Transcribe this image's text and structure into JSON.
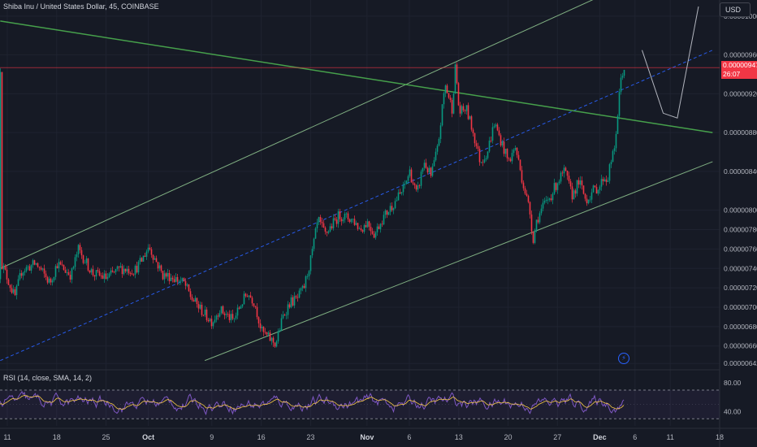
{
  "header": {
    "symbol_title": "Shiba Inu / United States Dollar, 45, COINBASE",
    "currency": "USD"
  },
  "last_price": {
    "value": "0.00000947",
    "countdown": "26:07",
    "y": 9.47e-06,
    "color": "#f23645"
  },
  "rsi_panel": {
    "title": "RSI (14, close, SMA, 14, 2)",
    "color": "#7e57c2",
    "ma_color": "#f7c948",
    "band_upper": 70,
    "band_lower": 30,
    "band_fill": "#7e57c2"
  },
  "icons": {
    "alert": "lightning-icon"
  },
  "colors": {
    "up": "#089981",
    "down": "#f23645",
    "trend": "#4caf50",
    "channel": "#8bbf8c",
    "median": "#2962ff",
    "background": "#161a25",
    "grid": "#1f2330"
  },
  "chart_data": {
    "type": "candlestick",
    "price_axis": {
      "ylim": [
        6.38e-06,
        1.01e-05
      ],
      "tick_labels": [
        "0.00001000",
        "0.00000960",
        "0.00000920",
        "0.00000880",
        "0.00000840",
        "0.00000800",
        "0.00000780",
        "0.00000760",
        "0.00000740",
        "0.00000720",
        "0.00000700",
        "0.00000680",
        "0.00000660",
        "0.00000642"
      ],
      "tick_values": [
        1e-05,
        9.6e-06,
        9.2e-06,
        8.8e-06,
        8.4e-06,
        8e-06,
        7.8e-06,
        7.6e-06,
        7.4e-06,
        7.2e-06,
        7e-06,
        6.8e-06,
        6.6e-06,
        6.42e-06
      ]
    },
    "time_axis": {
      "labels": [
        "11",
        "18",
        "25",
        "Oct",
        "9",
        "16",
        "23",
        "Nov",
        "6",
        "13",
        "20",
        "27",
        "Dec",
        "6",
        "11",
        "18"
      ],
      "bold": [
        "Oct",
        "Nov",
        "Dec"
      ],
      "positions": [
        0,
        7,
        14,
        20,
        29,
        36,
        43,
        51,
        57,
        64,
        71,
        78,
        84,
        89,
        94,
        101
      ]
    },
    "price_path": {
      "x": [
        -1,
        1,
        2,
        4,
        6,
        7,
        9,
        10,
        12,
        14,
        16,
        18,
        19,
        20,
        22,
        23,
        25,
        26,
        28,
        29,
        30,
        32,
        33,
        34,
        35,
        36,
        38,
        39,
        40,
        41,
        42,
        43,
        44,
        45,
        47,
        49,
        50,
        51,
        52,
        53,
        54,
        55,
        56,
        57,
        58,
        59,
        60,
        61,
        62,
        63,
        63.5,
        64,
        65,
        66,
        67,
        68,
        69,
        70,
        71,
        72,
        73,
        74,
        74.5,
        75,
        76,
        77,
        78,
        79,
        80,
        81,
        82,
        83,
        84,
        84.5,
        85,
        85.5,
        86,
        87,
        87.5
      ],
      "y": [
        7.48e-06,
        7.1e-06,
        7.38e-06,
        7.45e-06,
        7.25e-06,
        7.45e-06,
        7.33e-06,
        7.6e-06,
        7.35e-06,
        7.3e-06,
        7.4e-06,
        7.38e-06,
        7.48e-06,
        7.63e-06,
        7.33e-06,
        7.32e-06,
        7.25e-06,
        7.1e-06,
        6.92e-06,
        6.85e-06,
        6.98e-06,
        6.86e-06,
        7.02e-06,
        7.15e-06,
        7.05e-06,
        6.75e-06,
        6.62e-06,
        6.9e-06,
        7.05e-06,
        7.08e-06,
        7.2e-06,
        7.5e-06,
        7.9e-06,
        7.75e-06,
        7.95e-06,
        7.9e-06,
        7.8e-06,
        7.88e-06,
        7.75e-06,
        7.9e-06,
        8e-06,
        8.1e-06,
        8.2e-06,
        8.4e-06,
        8.15e-06,
        8.5e-06,
        8.35e-06,
        8.65e-06,
        9.3e-06,
        9.05e-06,
        9.5e-06,
        9e-06,
        9.05e-06,
        8.8e-06,
        8.5e-06,
        8.6e-06,
        8.9e-06,
        8.7e-06,
        8.5e-06,
        8.65e-06,
        8.3e-06,
        8e-06,
        7.7e-06,
        7.9e-06,
        8.05e-06,
        8.15e-06,
        8.3e-06,
        8.4e-06,
        8.15e-06,
        8.3e-06,
        8.1e-06,
        8.2e-06,
        8.25e-06,
        8.35e-06,
        8.3e-06,
        8.5e-06,
        8.6e-06,
        9.4e-06,
        9.47e-06
      ]
    },
    "trendline": {
      "from": [
        -1,
        9.95e-06
      ],
      "to": [
        100,
        8.8e-06
      ],
      "color": "#4caf50"
    },
    "channel_upper": {
      "from": [
        -1,
        7.4e-06
      ],
      "to": [
        90,
        1.04e-05
      ],
      "color": "#8bbf8c"
    },
    "channel_median": {
      "from": [
        -1,
        6.45e-06
      ],
      "to": [
        100,
        9.65e-06
      ],
      "color": "#2962ff"
    },
    "channel_lower": {
      "from": [
        28,
        6.45e-06
      ],
      "to": [
        100,
        8.5e-06
      ],
      "color": "#8bbf8c"
    },
    "projection": {
      "x": [
        90,
        93,
        95,
        98
      ],
      "y": [
        9.65e-06,
        9e-06,
        8.95e-06,
        1.01e-05
      ]
    },
    "horizontal_line": 9.47e-06,
    "rsi": {
      "ylim": [
        20,
        95
      ],
      "tick_labels": [
        "80.00",
        "40.00"
      ],
      "tick_values": [
        80,
        40
      ],
      "band": [
        70,
        30
      ]
    }
  }
}
